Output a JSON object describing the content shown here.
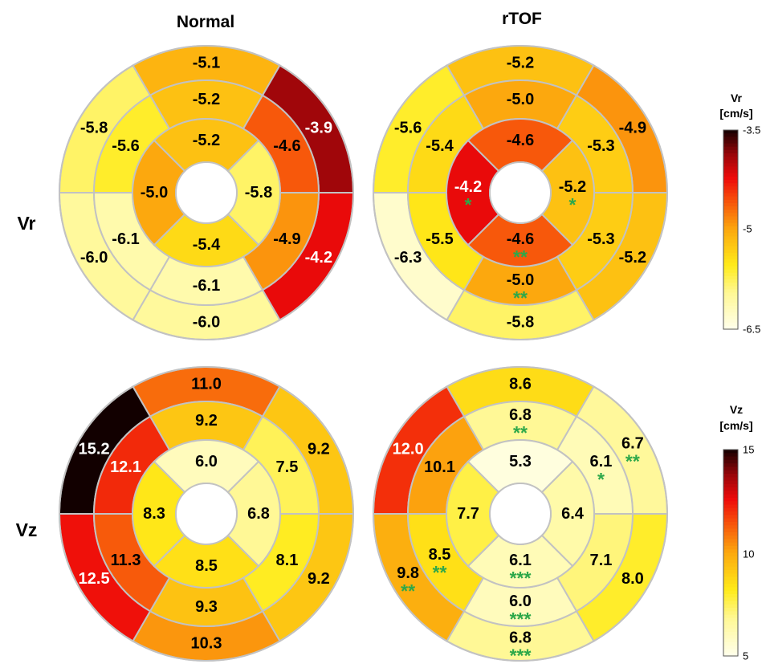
{
  "columns": [
    "Normal",
    "rTOF"
  ],
  "rows": [
    {
      "label": "Vr",
      "colorbar": {
        "title": [
          "Vr",
          "[cm/s]"
        ],
        "ticks": [
          "-3.5",
          "-5",
          "-6.5"
        ],
        "min": -6.5,
        "max": -3.5,
        "reverse": true
      }
    },
    {
      "label": "Vz",
      "colorbar": {
        "title": [
          "Vz",
          "[cm/s]"
        ],
        "ticks": [
          "15",
          "10",
          "5"
        ],
        "min": 5,
        "max": 15,
        "reverse": false
      }
    }
  ],
  "colormap": "hot",
  "significance_color": "#2ea84a",
  "diagrams": [
    {
      "row": "Vr",
      "column": "Normal",
      "basal": [
        "-5.1",
        "-3.9",
        "-4.2",
        "-6.0",
        "-6.0",
        "-5.8"
      ],
      "mid": [
        "-5.2",
        "-4.6",
        "-4.9",
        "-6.1",
        "-6.1",
        "-5.6"
      ],
      "apical": [
        "-5.2",
        "-5.8",
        "-5.4",
        "-5.0"
      ],
      "basal_sig": [
        "",
        "",
        "",
        "",
        "",
        ""
      ],
      "mid_sig": [
        "",
        "",
        "",
        "",
        "",
        ""
      ],
      "apical_sig": [
        "",
        "",
        "",
        ""
      ]
    },
    {
      "row": "Vr",
      "column": "rTOF",
      "basal": [
        "-5.2",
        "-4.9",
        "-5.2",
        "-5.8",
        "-6.3",
        "-5.6"
      ],
      "mid": [
        "-5.0",
        "-5.3",
        "-5.3",
        "-5.0",
        "-5.5",
        "-5.4"
      ],
      "apical": [
        "-4.6",
        "-5.2",
        "-4.6",
        "-4.2"
      ],
      "basal_sig": [
        "",
        "",
        "",
        "",
        "",
        ""
      ],
      "mid_sig": [
        "",
        "",
        "",
        "**",
        "",
        ""
      ],
      "apical_sig": [
        "",
        "*",
        "**",
        "*"
      ]
    },
    {
      "row": "Vz",
      "column": "Normal",
      "basal": [
        "11.0",
        "9.2",
        "9.2",
        "10.3",
        "12.5",
        "15.2"
      ],
      "mid": [
        "9.2",
        "7.5",
        "8.1",
        "9.3",
        "11.3",
        "12.1"
      ],
      "apical": [
        "6.0",
        "6.8",
        "8.5",
        "8.3"
      ],
      "basal_sig": [
        "",
        "",
        "",
        "",
        "",
        ""
      ],
      "mid_sig": [
        "",
        "",
        "",
        "",
        "",
        ""
      ],
      "apical_sig": [
        "",
        "",
        "",
        ""
      ]
    },
    {
      "row": "Vz",
      "column": "rTOF",
      "basal": [
        "8.6",
        "6.7",
        "8.0",
        "6.8",
        "9.8",
        "12.0"
      ],
      "mid": [
        "6.8",
        "6.1",
        "7.1",
        "6.0",
        "8.5",
        "10.1"
      ],
      "apical": [
        "5.3",
        "6.4",
        "6.1",
        "7.7"
      ],
      "basal_sig": [
        "",
        "**",
        "",
        "***",
        "**",
        ""
      ],
      "mid_sig": [
        "**",
        "*",
        "",
        "***",
        "**",
        ""
      ],
      "apical_sig": [
        "",
        "",
        "***",
        ""
      ]
    }
  ]
}
